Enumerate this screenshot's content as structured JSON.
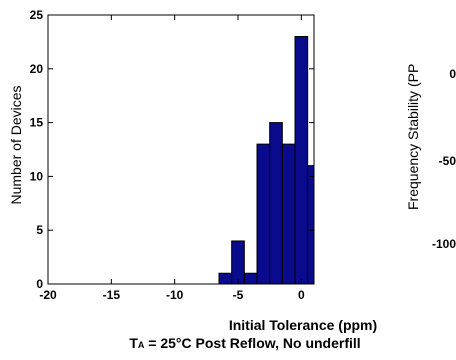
{
  "chart_data": {
    "type": "bar",
    "title": "",
    "xlabel": "Initial Tolerance (ppm)",
    "ylabel": "Number of Devices",
    "xlim": [
      -20,
      1
    ],
    "ylim": [
      0,
      25
    ],
    "grid": false,
    "bin_width": 1,
    "bins": [
      {
        "x": -6,
        "value": 1
      },
      {
        "x": -5,
        "value": 4
      },
      {
        "x": -4,
        "value": 1
      },
      {
        "x": -3,
        "value": 13
      },
      {
        "x": -2,
        "value": 15
      },
      {
        "x": -1,
        "value": 13
      },
      {
        "x": 0,
        "value": 23
      },
      {
        "x": 1,
        "value": 11
      }
    ],
    "xticks": [
      -20,
      -15,
      -10,
      -5,
      0
    ],
    "yticks": [
      0,
      5,
      10,
      15,
      20,
      25
    ],
    "bar_color": "#0a0a8c",
    "bar_edge_color": "#000000"
  },
  "caption": {
    "xlabel": "Initial Tolerance (ppm)",
    "condition_prefix": "T",
    "condition_sub": "A",
    "condition_rest": " = 25°C Post Reflow, No underfill"
  },
  "neighbor_panel": {
    "ylabel_fragment": "Frequency Stability (PP",
    "ticks": [
      "0",
      "-50",
      "-100"
    ]
  }
}
